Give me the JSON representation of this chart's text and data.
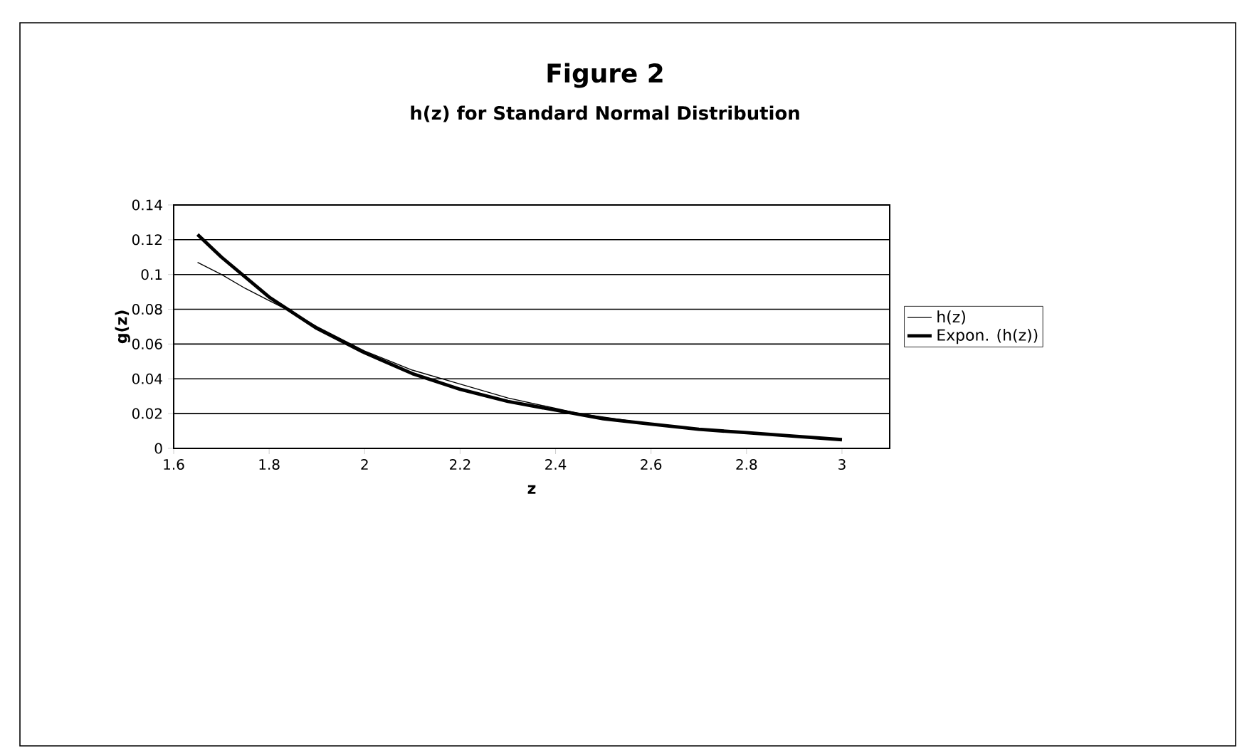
{
  "chart_data": {
    "type": "line",
    "title": "Figure 2",
    "subtitle": "h(z) for Standard Normal Distribution",
    "xlabel": "z",
    "ylabel": "g(z)",
    "xlim": [
      1.6,
      3.1
    ],
    "xticks": [
      1.6,
      1.8,
      2,
      2.2,
      2.4,
      2.6,
      2.8,
      3
    ],
    "ylim": [
      0,
      0.14
    ],
    "yticks": [
      0,
      0.02,
      0.04,
      0.06,
      0.08,
      0.1,
      0.12,
      0.14
    ],
    "grid": "y",
    "legend": "right",
    "marker": "none",
    "series": [
      {
        "name": "h(z)",
        "color": "#000000",
        "x": [
          1.65,
          1.7,
          1.75,
          1.8,
          1.85,
          1.9,
          2.0,
          2.1,
          2.2,
          2.3,
          2.4,
          2.45,
          2.5,
          2.6,
          2.7,
          2.8,
          2.9,
          3.0
        ],
        "values": [
          0.107,
          0.1,
          0.092,
          0.085,
          0.078,
          0.07,
          0.056,
          0.045,
          0.037,
          0.029,
          0.023,
          0.02,
          0.018,
          0.014,
          0.011,
          0.009,
          0.007,
          0.005
        ]
      },
      {
        "name": "Expon. (h(z))",
        "color": "#000000",
        "x": [
          1.65,
          1.7,
          1.8,
          1.9,
          2.0,
          2.1,
          2.2,
          2.3,
          2.4,
          2.5,
          2.6,
          2.7,
          2.8,
          2.9,
          3.0
        ],
        "values": [
          0.123,
          0.11,
          0.087,
          0.069,
          0.055,
          0.043,
          0.034,
          0.027,
          0.022,
          0.017,
          0.014,
          0.011,
          0.009,
          0.007,
          0.005
        ]
      }
    ]
  }
}
